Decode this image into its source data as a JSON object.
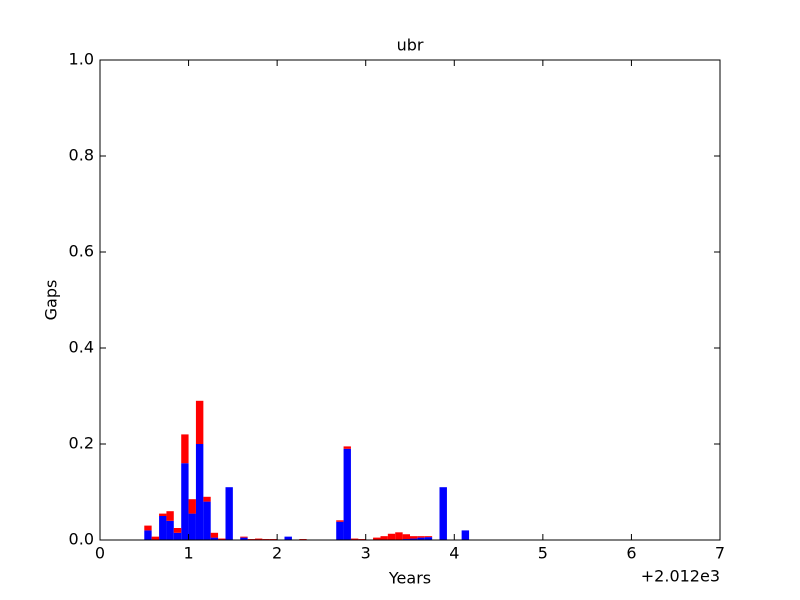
{
  "chart_data": {
    "type": "stacked_histogram",
    "title": "ubr",
    "x_label": "Years",
    "y_label": "Gaps",
    "x_offset_label": "+2.012e3",
    "bins": [
      0.5,
      0.583,
      0.667,
      0.75,
      0.833,
      0.917,
      1,
      1.083,
      1.167,
      1.25,
      1.333,
      1.417,
      1.5,
      1.583,
      1.667,
      1.75,
      1.833,
      1.917,
      2,
      2.083,
      2.167,
      2.25,
      2.333,
      2.417,
      2.5,
      2.583,
      2.667,
      2.75,
      2.833,
      2.917,
      3,
      3.083,
      3.167,
      3.25,
      3.333,
      3.417,
      3.5,
      3.583,
      3.667,
      3.75,
      3.833,
      3.917,
      4,
      4.083,
      4.167
    ],
    "series": [
      {
        "color": "#0000ff",
        "values": [
          0.02,
          0,
          0.05,
          0.04,
          0.015,
          0.16,
          0.055,
          0.2,
          0.08,
          0.005,
          0,
          0.11,
          0,
          0.005,
          0,
          0,
          0,
          0,
          0,
          0.007,
          0,
          0,
          0,
          0,
          0,
          0,
          0.038,
          0.19,
          0,
          0,
          0,
          0,
          0,
          0,
          0,
          0.002,
          0.003,
          0.005,
          0.006,
          0,
          0.11,
          0,
          0,
          0.02
        ]
      },
      {
        "color": "#ff0000",
        "values": [
          0.01,
          0.007,
          0.005,
          0.02,
          0.01,
          0.06,
          0.03,
          0.09,
          0.01,
          0.01,
          0.003,
          0,
          0,
          0.002,
          0.002,
          0.003,
          0.002,
          0.002,
          0,
          0,
          0,
          0.002,
          0,
          0,
          0,
          0,
          0.003,
          0.005,
          0.003,
          0.002,
          0.001,
          0.005,
          0.008,
          0.013,
          0.016,
          0.01,
          0.005,
          0.003,
          0.002,
          0,
          0,
          0,
          0,
          0
        ]
      }
    ],
    "xlim": [
      0,
      7
    ],
    "xticks": [
      0,
      1,
      2,
      3,
      4,
      5,
      6,
      7
    ],
    "ylim": [
      0,
      1
    ],
    "yticks": [
      {
        "value": 0,
        "label": "0.0"
      },
      0.2,
      0.4,
      0.6,
      0.8,
      {
        "value": 1,
        "label": "1.0"
      }
    ]
  }
}
